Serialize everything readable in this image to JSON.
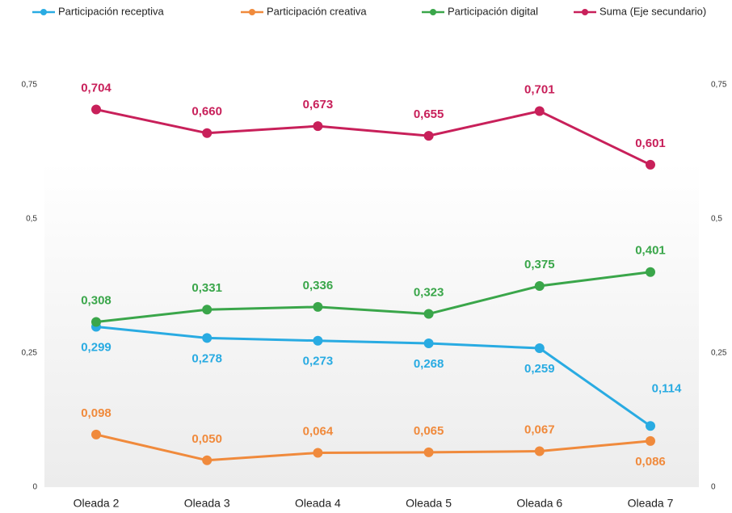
{
  "chart_data": {
    "type": "line",
    "categories": [
      "Oleada 2",
      "Oleada 3",
      "Oleada 4",
      "Oleada 5",
      "Oleada 6",
      "Oleada 7"
    ],
    "series": [
      {
        "name": "Participación receptiva",
        "color": "#29abe2",
        "values": [
          0.299,
          0.278,
          0.273,
          0.268,
          0.259,
          0.114
        ],
        "value_labels": [
          "0,299",
          "0,278",
          "0,273",
          "0,268",
          "0,259",
          "0,114"
        ]
      },
      {
        "name": "Participación creativa",
        "color": "#f08a3c",
        "values": [
          0.098,
          0.05,
          0.064,
          0.065,
          0.067,
          0.086
        ],
        "value_labels": [
          "0,098",
          "0,050",
          "0,064",
          "0,065",
          "0,067",
          "0,086"
        ]
      },
      {
        "name": "Participación digital",
        "color": "#3aa64a",
        "values": [
          0.308,
          0.331,
          0.336,
          0.323,
          0.375,
          0.401
        ],
        "value_labels": [
          "0,308",
          "0,331",
          "0,336",
          "0,323",
          "0,375",
          "0,401"
        ]
      },
      {
        "name": "Suma (Eje secundario)",
        "color": "#c8205a",
        "axis": "y2",
        "values": [
          0.704,
          0.66,
          0.673,
          0.655,
          0.701,
          0.601
        ],
        "value_labels": [
          "0,704",
          "0,660",
          "0,673",
          "0,655",
          "0,701",
          "0,601"
        ]
      }
    ],
    "ylim": [
      0,
      0.75
    ],
    "yticks": [
      0,
      {
        "value": 0.25,
        "label": "0,25"
      },
      {
        "value": 0.5,
        "label": "0,5"
      },
      {
        "value": 0.75,
        "label": "0,75"
      }
    ],
    "y2lim": [
      0,
      0.75
    ],
    "y2ticks": [
      0,
      {
        "value": 0.25,
        "label": "0,25"
      },
      {
        "value": 0.5,
        "label": "0,5"
      },
      {
        "value": 0.75,
        "label": "0,75"
      }
    ],
    "legend": "top"
  }
}
